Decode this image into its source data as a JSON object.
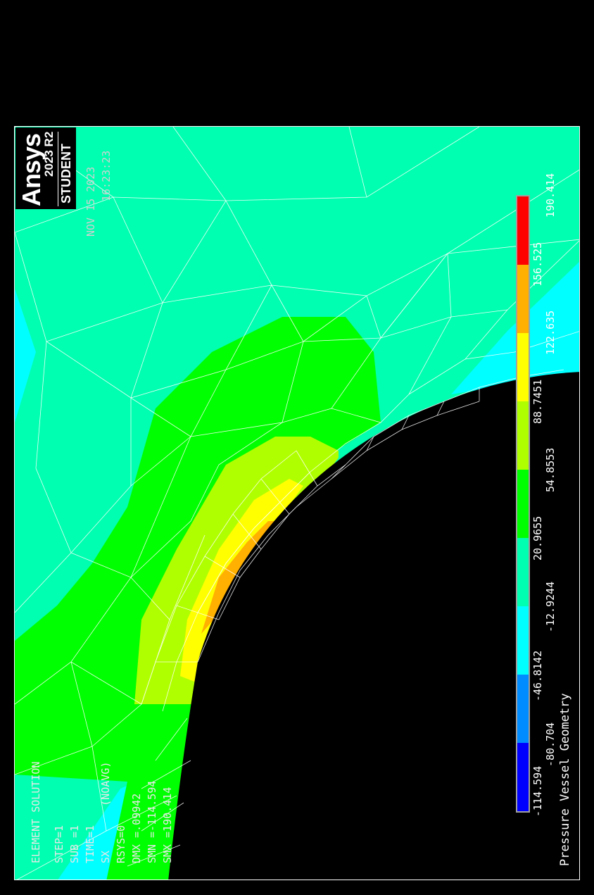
{
  "logo": {
    "brand": "Ansys",
    "version": "2023 R2",
    "edition": "STUDENT"
  },
  "header": {
    "date": "NOV 15 2023",
    "time": "16:23:23"
  },
  "info": {
    "title": "ELEMENT SOLUTION",
    "lines": [
      "STEP=1",
      "SUB =1",
      "TIME=1",
      "SX       (NOAVG)",
      "RSYS=0",
      "DMX =.09942",
      "SMN =-114.594",
      "SMX =190.414"
    ]
  },
  "legend": {
    "labels": [
      "-114.594",
      "-80.704",
      "-46.8142",
      "-12.9244",
      "20.9655",
      "54.8553",
      "88.7451",
      "122.635",
      "156.525",
      "190.414"
    ],
    "colors": [
      "#0000ff",
      "#008cff",
      "#00ffff",
      "#00ffb0",
      "#00ff00",
      "#b0ff00",
      "#ffff00",
      "#ffb000",
      "#ff0000"
    ]
  },
  "caption": "Pressure Vessel Geometry",
  "colors": {
    "background": "#000000",
    "frame": "#ffffff",
    "mesh": "#ffffff"
  }
}
